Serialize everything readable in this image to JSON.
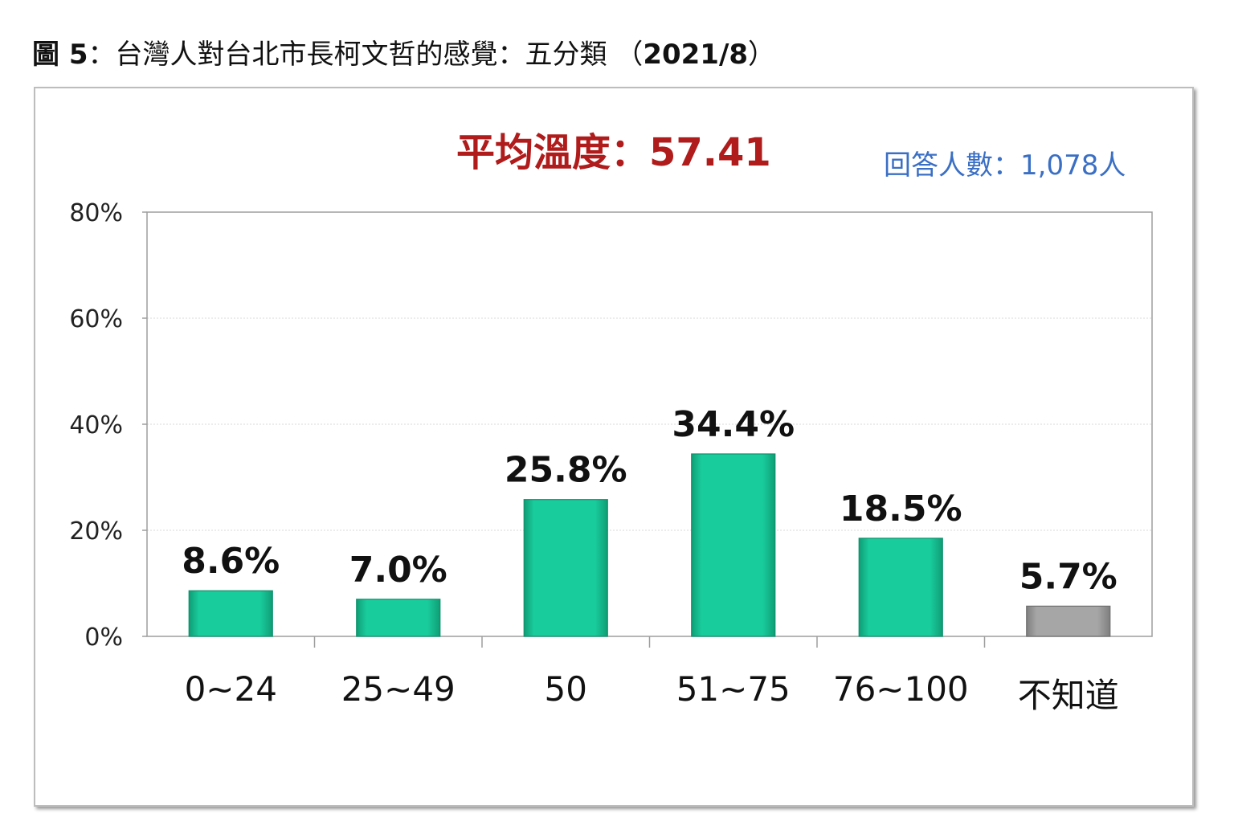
{
  "title": {
    "prefix": "圖 5",
    "text": "：台灣人對台北市長柯文哲的感覺：五分類 （",
    "date": "2021/8",
    "suffix": "）"
  },
  "average_label": "平均溫度：57.41",
  "respondents_label": "回答人數：1,078人",
  "colors": {
    "bar": "#19cc9c",
    "bar_unknown": "#a6a6a6",
    "average_text": "#b01c1c",
    "respondents_text": "#3a6fc4"
  },
  "chart_data": {
    "type": "bar",
    "categories": [
      "0~24",
      "25~49",
      "50",
      "51~75",
      "76~100",
      "不知道"
    ],
    "values": [
      8.6,
      7.0,
      25.8,
      34.4,
      18.5,
      5.7
    ],
    "value_labels": [
      "8.6%",
      "7.0%",
      "25.8%",
      "34.4%",
      "18.5%",
      "5.7%"
    ],
    "ylim": [
      0,
      80
    ],
    "yticks": [
      0,
      20,
      40,
      60,
      80
    ],
    "ytick_labels": [
      "0%",
      "20%",
      "40%",
      "60%",
      "80%"
    ],
    "xlabel": "",
    "ylabel": "",
    "grid": true,
    "legend": "none"
  }
}
